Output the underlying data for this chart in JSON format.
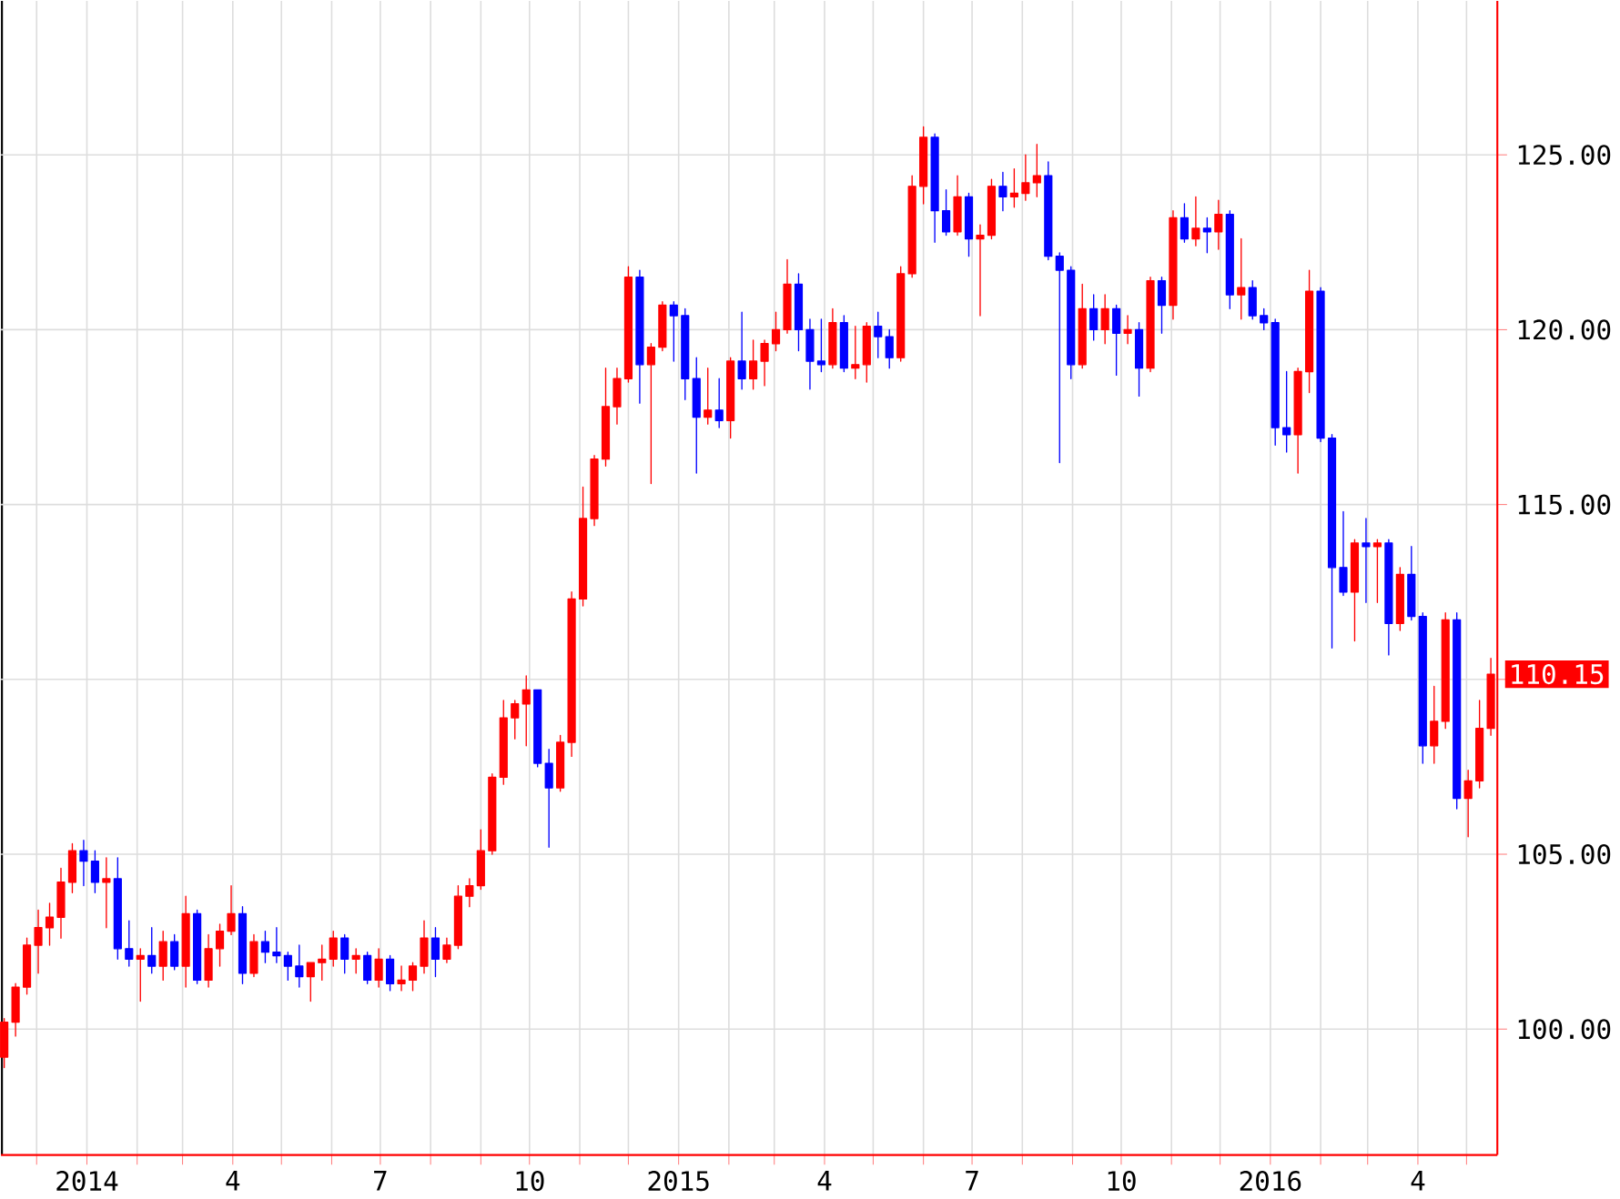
{
  "chart_data": {
    "type": "candlestick",
    "x": [
      "2013-11-11",
      "2013-11-18",
      "2013-11-25",
      "2013-12-02",
      "2013-12-09",
      "2013-12-16",
      "2013-12-23",
      "2013-12-30",
      "2014-01-06",
      "2014-01-13",
      "2014-01-20",
      "2014-01-27",
      "2014-02-03",
      "2014-02-10",
      "2014-02-17",
      "2014-02-24",
      "2014-03-03",
      "2014-03-10",
      "2014-03-17",
      "2014-03-24",
      "2014-03-31",
      "2014-04-07",
      "2014-04-14",
      "2014-04-21",
      "2014-04-28",
      "2014-05-05",
      "2014-05-12",
      "2014-05-19",
      "2014-05-26",
      "2014-06-02",
      "2014-06-09",
      "2014-06-16",
      "2014-06-23",
      "2014-06-30",
      "2014-07-07",
      "2014-07-14",
      "2014-07-21",
      "2014-07-28",
      "2014-08-04",
      "2014-08-11",
      "2014-08-18",
      "2014-08-25",
      "2014-09-01",
      "2014-09-08",
      "2014-09-15",
      "2014-09-22",
      "2014-09-29",
      "2014-10-06",
      "2014-10-13",
      "2014-10-20",
      "2014-10-27",
      "2014-11-03",
      "2014-11-10",
      "2014-11-17",
      "2014-11-24",
      "2014-12-01",
      "2014-12-08",
      "2014-12-15",
      "2014-12-22",
      "2014-12-29",
      "2015-01-05",
      "2015-01-12",
      "2015-01-19",
      "2015-01-26",
      "2015-02-02",
      "2015-02-09",
      "2015-02-16",
      "2015-02-23",
      "2015-03-02",
      "2015-03-09",
      "2015-03-16",
      "2015-03-23",
      "2015-03-30",
      "2015-04-06",
      "2015-04-13",
      "2015-04-20",
      "2015-04-27",
      "2015-05-04",
      "2015-05-11",
      "2015-05-18",
      "2015-05-25",
      "2015-06-01",
      "2015-06-08",
      "2015-06-15",
      "2015-06-22",
      "2015-06-29",
      "2015-07-06",
      "2015-07-13",
      "2015-07-20",
      "2015-07-27",
      "2015-08-03",
      "2015-08-10",
      "2015-08-17",
      "2015-08-24",
      "2015-08-31",
      "2015-09-07",
      "2015-09-14",
      "2015-09-21",
      "2015-09-28",
      "2015-10-05",
      "2015-10-12",
      "2015-10-19",
      "2015-10-26",
      "2015-11-02",
      "2015-11-09",
      "2015-11-16",
      "2015-11-23",
      "2015-11-30",
      "2015-12-07",
      "2015-12-14",
      "2015-12-21",
      "2015-12-28",
      "2016-01-04",
      "2016-01-11",
      "2016-01-18",
      "2016-01-25",
      "2016-02-01",
      "2016-02-08",
      "2016-02-15",
      "2016-02-22",
      "2016-02-29",
      "2016-03-07",
      "2016-03-14",
      "2016-03-21",
      "2016-03-28",
      "2016-04-04",
      "2016-04-11",
      "2016-04-18",
      "2016-04-25",
      "2016-05-02",
      "2016-05-09",
      "2016-05-16"
    ],
    "ohlc": [
      [
        99.2,
        100.3,
        98.9,
        100.2
      ],
      [
        100.2,
        101.3,
        99.8,
        101.2
      ],
      [
        101.2,
        102.6,
        101.0,
        102.4
      ],
      [
        102.4,
        103.4,
        101.6,
        102.9
      ],
      [
        102.9,
        103.6,
        102.4,
        103.2
      ],
      [
        103.2,
        104.6,
        102.6,
        104.2
      ],
      [
        104.2,
        105.3,
        103.9,
        105.1
      ],
      [
        105.1,
        105.4,
        104.1,
        104.8
      ],
      [
        104.8,
        105.1,
        103.9,
        104.2
      ],
      [
        104.2,
        104.9,
        102.9,
        104.3
      ],
      [
        104.3,
        104.9,
        102.0,
        102.3
      ],
      [
        102.3,
        103.1,
        101.8,
        102.0
      ],
      [
        102.0,
        102.3,
        100.8,
        102.1
      ],
      [
        102.1,
        102.9,
        101.6,
        101.8
      ],
      [
        101.8,
        102.8,
        101.4,
        102.5
      ],
      [
        102.5,
        102.7,
        101.7,
        101.8
      ],
      [
        101.8,
        103.8,
        101.2,
        103.3
      ],
      [
        103.3,
        103.4,
        101.3,
        101.4
      ],
      [
        101.4,
        102.7,
        101.2,
        102.3
      ],
      [
        102.3,
        103.0,
        101.8,
        102.8
      ],
      [
        102.8,
        104.1,
        102.7,
        103.3
      ],
      [
        103.3,
        103.5,
        101.3,
        101.6
      ],
      [
        101.6,
        102.7,
        101.5,
        102.5
      ],
      [
        102.5,
        102.8,
        101.9,
        102.2
      ],
      [
        102.2,
        102.9,
        101.9,
        102.1
      ],
      [
        102.1,
        102.2,
        101.4,
        101.8
      ],
      [
        101.8,
        102.4,
        101.2,
        101.5
      ],
      [
        101.5,
        101.9,
        100.8,
        101.9
      ],
      [
        101.9,
        102.4,
        101.4,
        102.0
      ],
      [
        102.0,
        102.8,
        101.8,
        102.6
      ],
      [
        102.6,
        102.7,
        101.6,
        102.0
      ],
      [
        102.0,
        102.3,
        101.6,
        102.1
      ],
      [
        102.1,
        102.2,
        101.3,
        101.4
      ],
      [
        101.4,
        102.3,
        101.2,
        102.0
      ],
      [
        102.0,
        102.1,
        101.1,
        101.3
      ],
      [
        101.3,
        101.8,
        101.1,
        101.4
      ],
      [
        101.4,
        101.9,
        101.1,
        101.8
      ],
      [
        101.8,
        103.1,
        101.6,
        102.6
      ],
      [
        102.6,
        102.9,
        101.5,
        102.0
      ],
      [
        102.0,
        102.6,
        101.9,
        102.4
      ],
      [
        102.4,
        104.1,
        102.3,
        103.8
      ],
      [
        103.8,
        104.3,
        103.5,
        104.1
      ],
      [
        104.1,
        105.7,
        104.0,
        105.1
      ],
      [
        105.1,
        107.3,
        105.0,
        107.2
      ],
      [
        107.2,
        109.4,
        107.0,
        108.9
      ],
      [
        108.9,
        109.4,
        108.3,
        109.3
      ],
      [
        109.3,
        110.1,
        108.1,
        109.7
      ],
      [
        109.7,
        109.7,
        107.5,
        107.6
      ],
      [
        107.6,
        108.0,
        105.2,
        106.9
      ],
      [
        106.9,
        108.4,
        106.8,
        108.2
      ],
      [
        108.2,
        112.5,
        107.8,
        112.3
      ],
      [
        112.3,
        115.5,
        112.1,
        114.6
      ],
      [
        114.6,
        116.4,
        114.4,
        116.3
      ],
      [
        116.3,
        118.9,
        116.1,
        117.8
      ],
      [
        117.8,
        118.9,
        117.3,
        118.6
      ],
      [
        118.6,
        121.8,
        118.5,
        121.5
      ],
      [
        121.5,
        121.7,
        117.9,
        119.0
      ],
      [
        119.0,
        119.6,
        115.6,
        119.5
      ],
      [
        119.5,
        120.8,
        119.4,
        120.7
      ],
      [
        120.7,
        120.8,
        119.1,
        120.4
      ],
      [
        120.4,
        120.6,
        118.0,
        118.6
      ],
      [
        118.6,
        119.2,
        115.9,
        117.5
      ],
      [
        117.5,
        118.9,
        117.3,
        117.7
      ],
      [
        117.7,
        118.6,
        117.2,
        117.4
      ],
      [
        117.4,
        119.2,
        116.9,
        119.1
      ],
      [
        119.1,
        120.5,
        118.3,
        118.6
      ],
      [
        118.6,
        119.7,
        118.3,
        119.1
      ],
      [
        119.1,
        119.7,
        118.4,
        119.6
      ],
      [
        119.6,
        120.5,
        119.4,
        120.0
      ],
      [
        120.0,
        122.0,
        119.9,
        121.3
      ],
      [
        121.3,
        121.6,
        119.4,
        120.0
      ],
      [
        120.0,
        120.3,
        118.3,
        119.1
      ],
      [
        119.1,
        120.3,
        118.8,
        119.0
      ],
      [
        119.0,
        120.6,
        118.9,
        120.2
      ],
      [
        120.2,
        120.4,
        118.8,
        118.9
      ],
      [
        118.9,
        120.1,
        118.6,
        119.0
      ],
      [
        119.0,
        120.2,
        118.5,
        120.1
      ],
      [
        120.1,
        120.5,
        119.2,
        119.8
      ],
      [
        119.8,
        120.0,
        118.9,
        119.2
      ],
      [
        119.2,
        121.8,
        119.1,
        121.6
      ],
      [
        121.6,
        124.4,
        121.5,
        124.1
      ],
      [
        124.1,
        125.8,
        123.6,
        125.5
      ],
      [
        125.5,
        125.6,
        122.5,
        123.4
      ],
      [
        123.4,
        124.0,
        122.7,
        122.8
      ],
      [
        122.8,
        124.4,
        122.7,
        123.8
      ],
      [
        123.8,
        123.9,
        122.1,
        122.6
      ],
      [
        122.6,
        123.0,
        120.4,
        122.7
      ],
      [
        122.7,
        124.3,
        122.6,
        124.1
      ],
      [
        124.1,
        124.5,
        123.4,
        123.8
      ],
      [
        123.8,
        124.6,
        123.5,
        123.9
      ],
      [
        123.9,
        125.0,
        123.7,
        124.2
      ],
      [
        124.2,
        125.3,
        123.8,
        124.4
      ],
      [
        124.4,
        124.8,
        122.0,
        122.1
      ],
      [
        122.1,
        122.2,
        116.2,
        121.7
      ],
      [
        121.7,
        121.8,
        118.6,
        119.0
      ],
      [
        119.0,
        121.3,
        118.9,
        120.6
      ],
      [
        120.6,
        121.0,
        119.7,
        120.0
      ],
      [
        120.0,
        121.0,
        119.6,
        120.6
      ],
      [
        120.6,
        120.7,
        118.7,
        119.9
      ],
      [
        119.9,
        120.4,
        119.6,
        120.0
      ],
      [
        120.0,
        120.2,
        118.1,
        118.9
      ],
      [
        118.9,
        121.5,
        118.8,
        121.4
      ],
      [
        121.4,
        121.5,
        119.9,
        120.7
      ],
      [
        120.7,
        123.4,
        120.3,
        123.2
      ],
      [
        123.2,
        123.6,
        122.5,
        122.6
      ],
      [
        122.6,
        123.8,
        122.4,
        122.9
      ],
      [
        122.9,
        123.2,
        122.2,
        122.8
      ],
      [
        122.8,
        123.7,
        122.3,
        123.3
      ],
      [
        123.3,
        123.4,
        120.6,
        121.0
      ],
      [
        121.0,
        122.6,
        120.3,
        121.2
      ],
      [
        121.2,
        121.4,
        120.3,
        120.4
      ],
      [
        120.4,
        120.6,
        120.0,
        120.2
      ],
      [
        120.2,
        120.3,
        116.7,
        117.2
      ],
      [
        117.2,
        118.8,
        116.5,
        117.0
      ],
      [
        117.0,
        118.9,
        115.9,
        118.8
      ],
      [
        118.8,
        121.7,
        118.2,
        121.1
      ],
      [
        121.1,
        121.2,
        116.8,
        116.9
      ],
      [
        116.9,
        117.0,
        110.9,
        113.2
      ],
      [
        113.2,
        114.8,
        112.4,
        112.5
      ],
      [
        112.5,
        114.0,
        111.1,
        113.9
      ],
      [
        113.9,
        114.6,
        112.2,
        113.8
      ],
      [
        113.8,
        114.0,
        112.2,
        113.9
      ],
      [
        113.9,
        114.0,
        110.7,
        111.6
      ],
      [
        111.6,
        113.2,
        111.4,
        113.0
      ],
      [
        113.0,
        113.8,
        111.7,
        111.8
      ],
      [
        111.8,
        111.9,
        107.6,
        108.1
      ],
      [
        108.1,
        109.8,
        107.6,
        108.8
      ],
      [
        108.8,
        111.9,
        108.6,
        111.7
      ],
      [
        111.7,
        111.9,
        106.3,
        106.6
      ],
      [
        106.6,
        107.4,
        105.5,
        107.1
      ],
      [
        107.1,
        109.4,
        106.9,
        108.6
      ],
      [
        108.6,
        110.6,
        108.4,
        110.15
      ]
    ],
    "colors": [
      "#ff0000",
      "#ff0000",
      "#ff0000",
      "#ff0000",
      "#ff0000",
      "#ff0000",
      "#ff0000",
      "#0000ff",
      "#0000ff",
      "#ff0000",
      "#0000ff",
      "#0000ff",
      "#ff0000",
      "#0000ff",
      "#ff0000",
      "#0000ff",
      "#ff0000",
      "#0000ff",
      "#ff0000",
      "#ff0000",
      "#ff0000",
      "#0000ff",
      "#ff0000",
      "#0000ff",
      "#0000ff",
      "#0000ff",
      "#0000ff",
      "#ff0000",
      "#ff0000",
      "#ff0000",
      "#0000ff",
      "#ff0000",
      "#0000ff",
      "#ff0000",
      "#0000ff",
      "#ff0000",
      "#ff0000",
      "#ff0000",
      "#0000ff",
      "#ff0000",
      "#ff0000",
      "#ff0000",
      "#ff0000",
      "#ff0000",
      "#ff0000",
      "#ff0000",
      "#ff0000",
      "#0000ff",
      "#0000ff",
      "#ff0000",
      "#ff0000",
      "#ff0000",
      "#ff0000",
      "#ff0000",
      "#ff0000",
      "#ff0000",
      "#0000ff",
      "#ff0000",
      "#ff0000",
      "#0000ff",
      "#0000ff",
      "#0000ff",
      "#ff0000",
      "#0000ff",
      "#ff0000",
      "#0000ff",
      "#ff0000",
      "#ff0000",
      "#ff0000",
      "#ff0000",
      "#0000ff",
      "#0000ff",
      "#0000ff",
      "#ff0000",
      "#0000ff",
      "#ff0000",
      "#ff0000",
      "#0000ff",
      "#0000ff",
      "#ff0000",
      "#ff0000",
      "#ff0000",
      "#0000ff",
      "#0000ff",
      "#ff0000",
      "#0000ff",
      "#ff0000",
      "#ff0000",
      "#0000ff",
      "#ff0000",
      "#ff0000",
      "#ff0000",
      "#0000ff",
      "#0000ff",
      "#0000ff",
      "#ff0000",
      "#0000ff",
      "#ff0000",
      "#0000ff",
      "#ff0000",
      "#0000ff",
      "#ff0000",
      "#0000ff",
      "#ff0000",
      "#0000ff",
      "#ff0000",
      "#0000ff",
      "#ff0000",
      "#0000ff",
      "#ff0000",
      "#0000ff",
      "#0000ff",
      "#0000ff",
      "#0000ff",
      "#ff0000",
      "#ff0000",
      "#0000ff",
      "#0000ff",
      "#0000ff",
      "#ff0000",
      "#0000ff",
      "#ff0000",
      "#0000ff",
      "#ff0000",
      "#0000ff",
      "#0000ff",
      "#ff0000",
      "#ff0000",
      "#0000ff",
      "#ff0000",
      "#ff0000",
      "#ff0000"
    ],
    "xlim": [
      "2013-11-09",
      "2016-05-20"
    ],
    "xticks": [
      {
        "value": "2013-12-01",
        "label": null
      },
      {
        "value": "2014-01-01",
        "label": "2014"
      },
      {
        "value": "2014-02-01",
        "label": null
      },
      {
        "value": "2014-03-01",
        "label": null
      },
      {
        "value": "2014-04-01",
        "label": "4"
      },
      {
        "value": "2014-05-01",
        "label": null
      },
      {
        "value": "2014-06-01",
        "label": null
      },
      {
        "value": "2014-07-01",
        "label": "7"
      },
      {
        "value": "2014-08-01",
        "label": null
      },
      {
        "value": "2014-09-01",
        "label": null
      },
      {
        "value": "2014-10-01",
        "label": "10"
      },
      {
        "value": "2014-11-01",
        "label": null
      },
      {
        "value": "2014-12-01",
        "label": null
      },
      {
        "value": "2015-01-01",
        "label": "2015"
      },
      {
        "value": "2015-02-01",
        "label": null
      },
      {
        "value": "2015-03-01",
        "label": null
      },
      {
        "value": "2015-04-01",
        "label": "4"
      },
      {
        "value": "2015-05-01",
        "label": null
      },
      {
        "value": "2015-06-01",
        "label": null
      },
      {
        "value": "2015-07-01",
        "label": "7"
      },
      {
        "value": "2015-08-01",
        "label": null
      },
      {
        "value": "2015-09-01",
        "label": null
      },
      {
        "value": "2015-10-01",
        "label": "10"
      },
      {
        "value": "2015-11-01",
        "label": null
      },
      {
        "value": "2015-12-01",
        "label": null
      },
      {
        "value": "2016-01-01",
        "label": "2016"
      },
      {
        "value": "2016-02-01",
        "label": null
      },
      {
        "value": "2016-03-01",
        "label": null
      },
      {
        "value": "2016-04-01",
        "label": "4"
      },
      {
        "value": "2016-05-01",
        "label": null
      }
    ],
    "ylim": [
      96.4,
      129.4
    ],
    "yticks": [
      {
        "value": 100,
        "label": "100.00"
      },
      {
        "value": 105,
        "label": "105.00"
      },
      {
        "value": 110,
        "label": null
      },
      {
        "value": 115,
        "label": "115.00"
      },
      {
        "value": 120,
        "label": "120.00"
      },
      {
        "value": 125,
        "label": "125.00"
      }
    ],
    "grid": true,
    "annotations": [
      "110.15"
    ]
  }
}
